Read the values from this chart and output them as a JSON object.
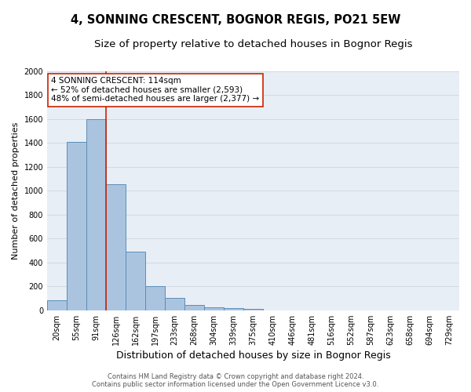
{
  "title": "4, SONNING CRESCENT, BOGNOR REGIS, PO21 5EW",
  "subtitle": "Size of property relative to detached houses in Bognor Regis",
  "xlabel": "Distribution of detached houses by size in Bognor Regis",
  "ylabel": "Number of detached properties",
  "categories": [
    "20sqm",
    "55sqm",
    "91sqm",
    "126sqm",
    "162sqm",
    "197sqm",
    "233sqm",
    "268sqm",
    "304sqm",
    "339sqm",
    "375sqm",
    "410sqm",
    "446sqm",
    "481sqm",
    "516sqm",
    "552sqm",
    "587sqm",
    "623sqm",
    "658sqm",
    "694sqm",
    "729sqm"
  ],
  "values": [
    80,
    1410,
    1600,
    1050,
    490,
    200,
    105,
    45,
    25,
    15,
    10,
    0,
    0,
    0,
    0,
    0,
    0,
    0,
    0,
    0,
    0
  ],
  "bar_color": "#aac4e0",
  "bar_edge_color": "#5b8db8",
  "property_label": "4 SONNING CRESCENT: 114sqm",
  "annotation_line1": "← 52% of detached houses are smaller (2,593)",
  "annotation_line2": "48% of semi-detached houses are larger (2,377) →",
  "red_line_color": "#cc2200",
  "ylim": [
    0,
    2000
  ],
  "yticks": [
    0,
    200,
    400,
    600,
    800,
    1000,
    1200,
    1400,
    1600,
    1800,
    2000
  ],
  "background_color": "#e8eef5",
  "footer_line1": "Contains HM Land Registry data © Crown copyright and database right 2024.",
  "footer_line2": "Contains public sector information licensed under the Open Government Licence v3.0.",
  "title_fontsize": 10.5,
  "subtitle_fontsize": 9.5,
  "xlabel_fontsize": 9,
  "ylabel_fontsize": 8,
  "tick_fontsize": 7,
  "annotation_fontsize": 7.5,
  "footer_fontsize": 6
}
